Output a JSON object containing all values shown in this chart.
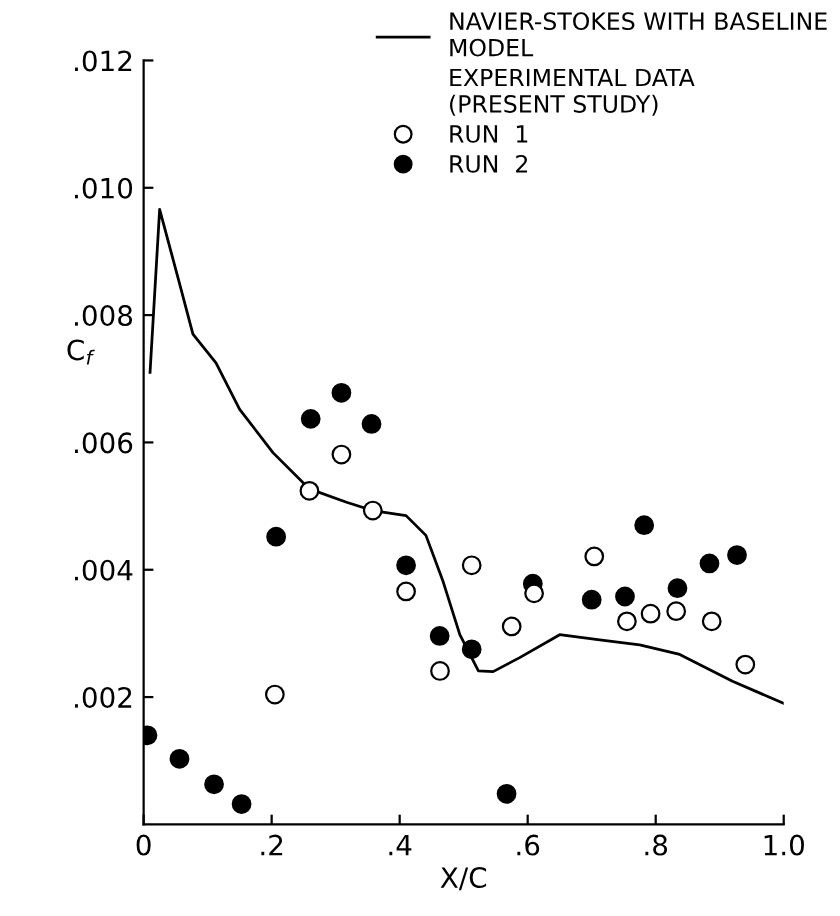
{
  "chart_data": {
    "type": "scatter",
    "xlabel": "X/C",
    "ylabel": "C$_{f}$",
    "xlim": [
      0,
      1.0
    ],
    "ylim": [
      0,
      0.012
    ],
    "xticks": [
      {
        "value": 0,
        "label": "0"
      },
      {
        "value": 0.2,
        "label": ".2"
      },
      {
        "value": 0.4,
        "label": ".4"
      },
      {
        "value": 0.6,
        "label": ".6"
      },
      {
        "value": 0.8,
        "label": ".8"
      },
      {
        "value": 1.0,
        "label": "1.0"
      }
    ],
    "yticks": [
      {
        "value": 0.002,
        "label": ".002"
      },
      {
        "value": 0.004,
        "label": ".004"
      },
      {
        "value": 0.006,
        "label": ".006"
      },
      {
        "value": 0.008,
        "label": ".008"
      },
      {
        "value": 0.01,
        "label": ".010"
      },
      {
        "value": 0.012,
        "label": ".012"
      }
    ],
    "grid": false,
    "legend": "top right",
    "annotations": [
      "EXPERIMENTAL DATA\n(PRESENT STUDY)"
    ],
    "series": [
      {
        "name": "NAVIER-STOKES WITH BASELINE\nMODEL",
        "type": "line",
        "color": "#000000",
        "marker": "none",
        "line_style": "solid",
        "x": [
          0.01,
          0.025,
          0.056,
          0.077,
          0.113,
          0.15,
          0.202,
          0.259,
          0.317,
          0.358,
          0.41,
          0.441,
          0.468,
          0.494,
          0.523,
          0.546,
          0.5875,
          0.65,
          0.7125,
          0.775,
          0.8375,
          0.92,
          1.0
        ],
        "values": [
          0.0071,
          0.00966,
          0.0085,
          0.0077,
          0.00725,
          0.00652,
          0.00584,
          0.00527,
          0.00506,
          0.00493,
          0.00485,
          0.00454,
          0.00381,
          0.00298,
          0.00241,
          0.0024,
          0.00262,
          0.00298,
          0.0029,
          0.00282,
          0.00267,
          0.00225,
          0.0019
        ]
      },
      {
        "name": "RUN  1",
        "color": "#ffffff",
        "marker": "circle",
        "x": [
          0.205,
          0.259,
          0.309,
          0.358,
          0.41,
          0.463,
          0.5125,
          0.575,
          0.61,
          0.704,
          0.755,
          0.792,
          0.832,
          0.8875,
          0.94
        ],
        "values": [
          0.00204,
          0.00524,
          0.00581,
          0.00493,
          0.00366,
          0.00241,
          0.00407,
          0.00311,
          0.00363,
          0.00421,
          0.00319,
          0.00331,
          0.00335,
          0.00319,
          0.00251
        ]
      },
      {
        "name": "RUN  2",
        "color": "#000000",
        "marker": "circle",
        "x": [
          0.006,
          0.056,
          0.11,
          0.153,
          0.207,
          0.261,
          0.309,
          0.356,
          0.41,
          0.4625,
          0.5125,
          0.567,
          0.608,
          0.7,
          0.752,
          0.782,
          0.834,
          0.884,
          0.927
        ],
        "values": [
          0.0014,
          0.00103,
          0.00063,
          0.00032,
          0.00452,
          0.00637,
          0.00678,
          0.00629,
          0.00407,
          0.00296,
          0.00275,
          0.00048,
          0.00378,
          0.00353,
          0.00358,
          0.0047,
          0.00371,
          0.0041,
          0.00423
        ]
      }
    ]
  }
}
